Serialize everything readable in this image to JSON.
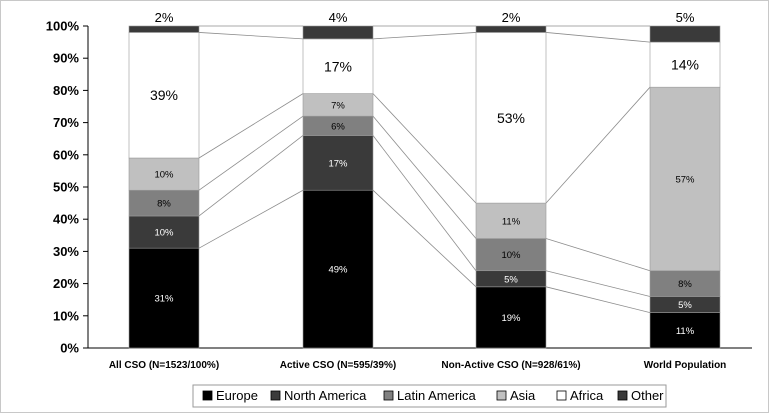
{
  "chart_data": {
    "type": "bar",
    "stacked": true,
    "percent": true,
    "categories": [
      "All CSO (N=1523/100%)",
      "Active CSO (N=595/39%)",
      "Non-Active CSO (N=928/61%)",
      "World Population"
    ],
    "series": [
      {
        "name": "Europe",
        "color": "#000000",
        "label_color": "#ffffff",
        "values": [
          31,
          49,
          19,
          11
        ],
        "labels": [
          "31%",
          "49%",
          "19%",
          "11%"
        ]
      },
      {
        "name": "North America",
        "color": "#3a3a3a",
        "label_color": "#ffffff",
        "values": [
          10,
          17,
          5,
          5
        ],
        "labels": [
          "10%",
          "17%",
          "5%",
          "5%"
        ]
      },
      {
        "name": "Latin America",
        "color": "#808080",
        "label_color": "#000000",
        "values": [
          8,
          6,
          10,
          8
        ],
        "labels": [
          "8%",
          "6%",
          "10%",
          "8%"
        ]
      },
      {
        "name": "Asia",
        "color": "#c0c0c0",
        "label_color": "#000000",
        "values": [
          10,
          7,
          11,
          57
        ],
        "labels": [
          "10%",
          "7%",
          "11%",
          "57%"
        ]
      },
      {
        "name": "Africa",
        "color": "#ffffff",
        "label_color": "#000000",
        "values": [
          39,
          17,
          53,
          14
        ],
        "labels": [
          "39%",
          "17%",
          "53%",
          "14%"
        ]
      },
      {
        "name": "Other",
        "color": "#3a3a3a",
        "label_color": "#000000",
        "values": [
          2,
          4,
          2,
          5
        ],
        "labels": [
          "2%",
          "4%",
          "2%",
          "5%"
        ]
      }
    ],
    "yticks": [
      "0%",
      "10%",
      "20%",
      "30%",
      "40%",
      "50%",
      "60%",
      "70%",
      "80%",
      "90%",
      "100%"
    ],
    "ylim": [
      0,
      100
    ],
    "grid": false,
    "legend_position": "bottom",
    "series_lines": true
  }
}
